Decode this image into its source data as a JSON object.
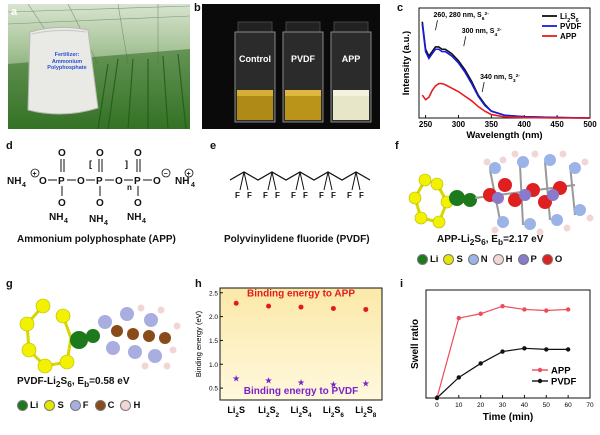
{
  "panels": {
    "a": {
      "label": "a",
      "bag_text": [
        "Fertilizer:",
        "Ammonium",
        "Polyphosphate"
      ]
    },
    "b": {
      "label": "b",
      "vials": [
        "Control",
        "PVDF",
        "APP"
      ]
    },
    "c": {
      "label": "c"
    },
    "d": {
      "label": "d",
      "caption": "Ammonium polyphosphate (APP)",
      "n": "n"
    },
    "e": {
      "label": "e",
      "caption": "Polyvinylidene fluoride (PVDF)"
    },
    "f": {
      "label": "f",
      "caption_parts": [
        "APP-Li",
        "2",
        "S",
        "6",
        ", E",
        "b",
        "=2.17 eV"
      ],
      "legend": [
        {
          "sym": "Li",
          "color": "#1c7a1c"
        },
        {
          "sym": "S",
          "color": "#e6e600"
        },
        {
          "sym": "N",
          "color": "#9bb3e6"
        },
        {
          "sym": "H",
          "color": "#f2d6d6"
        },
        {
          "sym": "P",
          "color": "#8a7acc"
        },
        {
          "sym": "O",
          "color": "#e02020"
        }
      ]
    },
    "g": {
      "label": "g",
      "caption_parts": [
        "PVDF-Li",
        "2",
        "S",
        "6",
        ",  E",
        "b",
        "=0.58 eV"
      ],
      "legend": [
        {
          "sym": "Li",
          "color": "#1c7a1c"
        },
        {
          "sym": "S",
          "color": "#e6e600"
        },
        {
          "sym": "F",
          "color": "#a9aee0"
        },
        {
          "sym": "C",
          "color": "#8a4b1a"
        },
        {
          "sym": "H",
          "color": "#f2d6d6"
        }
      ]
    },
    "h": {
      "label": "h"
    },
    "i": {
      "label": "i"
    }
  },
  "chart_data": [
    {
      "id": "c",
      "type": "line",
      "xlabel": "Wavelength (nm)",
      "ylabel": "Intensity (a.u.)",
      "xlim": [
        240,
        500
      ],
      "xticks": [
        250,
        300,
        350,
        400,
        450,
        500
      ],
      "legend_position": "top-right",
      "series": [
        {
          "name_parts": [
            "Li",
            "2",
            "S",
            "6"
          ],
          "color": "#111111",
          "x": [
            245,
            250,
            255,
            260,
            265,
            270,
            275,
            280,
            285,
            290,
            300,
            310,
            320,
            330,
            340,
            350,
            370,
            400,
            450,
            500
          ],
          "y": [
            0.42,
            0.3,
            0.27,
            0.29,
            0.31,
            0.31,
            0.3,
            0.3,
            0.29,
            0.28,
            0.25,
            0.21,
            0.16,
            0.1,
            0.06,
            0.03,
            0.012,
            0.005,
            0.002,
            0.0
          ]
        },
        {
          "name": "PVDF",
          "color": "#1a1ae0",
          "x": [
            245,
            250,
            255,
            260,
            265,
            270,
            275,
            280,
            285,
            290,
            300,
            310,
            320,
            330,
            340,
            350,
            370,
            400,
            450,
            500
          ],
          "y": [
            0.41,
            0.29,
            0.26,
            0.28,
            0.3,
            0.3,
            0.29,
            0.29,
            0.28,
            0.27,
            0.24,
            0.2,
            0.15,
            0.095,
            0.055,
            0.03,
            0.012,
            0.005,
            0.002,
            0.0
          ]
        },
        {
          "name": "APP",
          "color": "#e81c1c",
          "x": [
            245,
            250,
            255,
            260,
            265,
            270,
            275,
            280,
            290,
            300,
            310,
            320,
            330,
            340,
            350,
            370,
            400,
            450,
            500
          ],
          "y": [
            0.1,
            0.08,
            0.09,
            0.12,
            0.14,
            0.15,
            0.15,
            0.145,
            0.13,
            0.115,
            0.095,
            0.075,
            0.05,
            0.03,
            0.015,
            0.005,
            0.002,
            0.0,
            0.0
          ]
        }
      ],
      "annotations": [
        {
          "parts": [
            "260, 280 nm, S",
            "6",
            "2-"
          ],
          "x": 262,
          "y": 0.44
        },
        {
          "parts": [
            "300 nm, S",
            "4",
            "2-"
          ],
          "x": 305,
          "y": 0.37
        },
        {
          "parts": [
            "340 nm,  S",
            "3",
            "2-"
          ],
          "x": 333,
          "y": 0.17
        }
      ]
    },
    {
      "id": "h",
      "type": "scatter",
      "ylabel": "Binding energy (eV)",
      "ylim": [
        0.25,
        2.6
      ],
      "yticks": [
        0.5,
        1.0,
        1.5,
        2.0,
        2.5
      ],
      "categories": [
        [
          "Li",
          "2",
          "S",
          ""
        ],
        [
          "Li",
          "2",
          "S",
          "2"
        ],
        [
          "Li",
          "2",
          "S",
          "4"
        ],
        [
          "Li",
          "2",
          "S",
          "6"
        ],
        [
          "Li",
          "2",
          "S",
          "8"
        ]
      ],
      "series": [
        {
          "name": "Binding energy to APP",
          "color": "#e41b1b",
          "marker": "circle",
          "values": [
            2.28,
            2.22,
            2.2,
            2.17,
            2.15
          ]
        },
        {
          "name": "Binding energy to PVDF",
          "color": "#7a22c9",
          "marker": "star",
          "values": [
            0.7,
            0.66,
            0.62,
            0.58,
            0.6
          ]
        }
      ]
    },
    {
      "id": "i",
      "type": "line",
      "xlabel": "Time (min)",
      "ylabel": "Swell ratio",
      "xlim": [
        -5,
        70
      ],
      "xticks": [
        0,
        10,
        20,
        30,
        40,
        50,
        60,
        70
      ],
      "ylim": [
        0,
        0.5
      ],
      "legend_position": "bottom-right",
      "series": [
        {
          "name": "APP",
          "color": "#ef4a5a",
          "x": [
            0,
            10,
            20,
            30,
            40,
            50,
            60
          ],
          "y": [
            0.0,
            0.37,
            0.39,
            0.425,
            0.41,
            0.405,
            0.41
          ]
        },
        {
          "name": "PVDF",
          "color": "#111111",
          "x": [
            0,
            10,
            20,
            30,
            40,
            50,
            60
          ],
          "y": [
            0.0,
            0.095,
            0.16,
            0.215,
            0.23,
            0.225,
            0.225
          ]
        }
      ]
    }
  ]
}
